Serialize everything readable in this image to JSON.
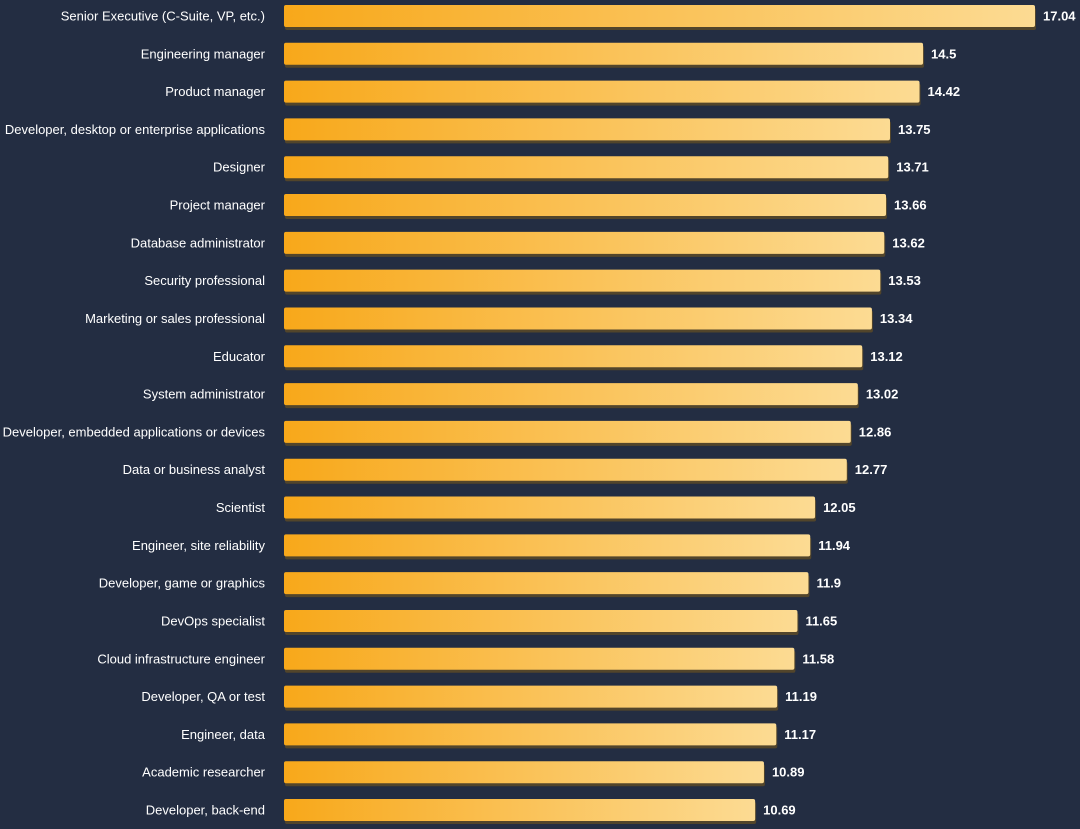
{
  "chart_data": {
    "type": "bar",
    "orientation": "horizontal",
    "title": "",
    "xlabel": "",
    "ylabel": "",
    "xlim": [
      0,
      17.04
    ],
    "grid": false,
    "legend": "none",
    "colors": {
      "background": "#232d42",
      "bar_start": "#f8a81a",
      "bar_end": "#fcdb93",
      "bar_shadow": "#7a5a1a",
      "text": "#ffffff"
    },
    "categories": [
      "Senior Executive (C-Suite, VP, etc.)",
      "Engineering manager",
      "Product manager",
      "Developer, desktop or enterprise applications",
      "Designer",
      "Project manager",
      "Database administrator",
      "Security professional",
      "Marketing or sales professional",
      "Educator",
      "System administrator",
      "Developer, embedded applications or devices",
      "Data or business analyst",
      "Scientist",
      "Engineer, site reliability",
      "Developer, game or graphics",
      "DevOps specialist",
      "Cloud infrastructure engineer",
      "Developer, QA or test",
      "Engineer, data",
      "Academic researcher",
      "Developer, back-end"
    ],
    "values": [
      17.04,
      14.5,
      14.42,
      13.75,
      13.71,
      13.66,
      13.62,
      13.53,
      13.34,
      13.12,
      13.02,
      12.86,
      12.77,
      12.05,
      11.94,
      11.9,
      11.65,
      11.58,
      11.19,
      11.17,
      10.89,
      10.69
    ],
    "value_labels": [
      "17.04",
      "14.5",
      "14.42",
      "13.75",
      "13.71",
      "13.66",
      "13.62",
      "13.53",
      "13.34",
      "13.12",
      "13.02",
      "12.86",
      "12.77",
      "12.05",
      "11.94",
      "11.9",
      "11.65",
      "11.58",
      "11.19",
      "11.17",
      "10.89",
      "10.69"
    ]
  }
}
